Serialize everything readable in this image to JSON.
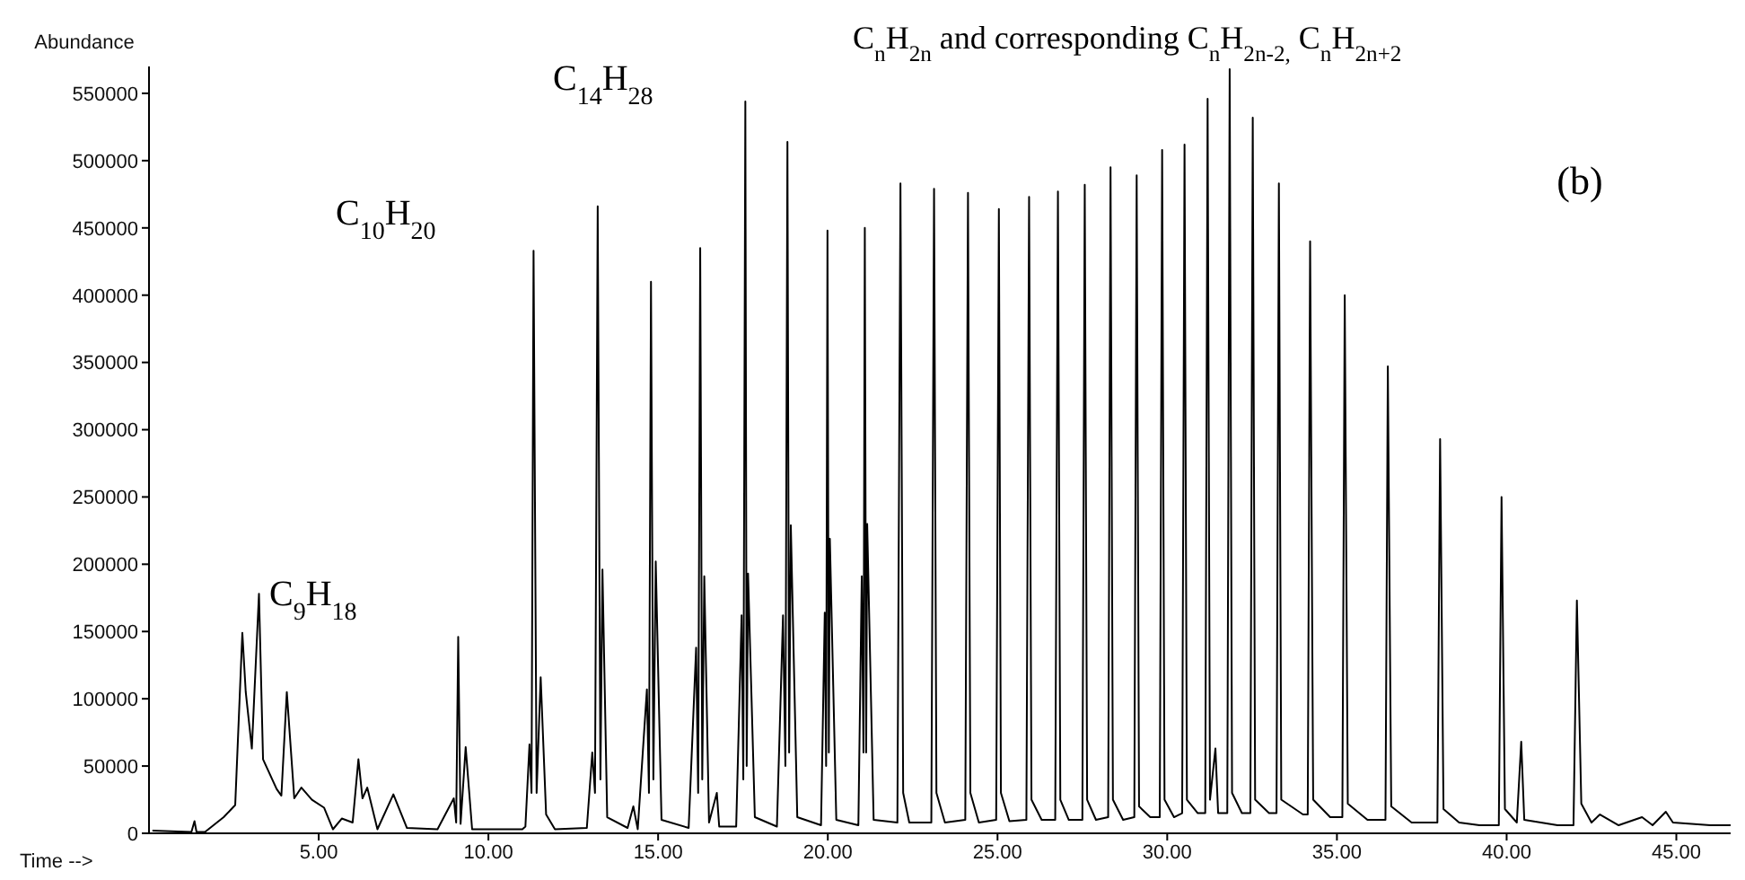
{
  "chart_data": {
    "type": "line",
    "xlabel": "Time -->",
    "ylabel": "Abundance",
    "annotations": [
      "C$_{9}$H$_{18}$",
      "C$_{10}$H$_{20}$",
      "C$_{14}$H$_{28}$",
      "C$_{n}$H$_{2n}$ and corresponding C$_{n}$H$_{2n-2,}$ C$_{n}$H$_{2n+2}$",
      "(b)"
    ],
    "x": [
      0.1,
      1.25,
      1.34,
      1.4,
      1.65,
      2.2,
      2.54,
      2.75,
      2.85,
      3.03,
      3.24,
      3.36,
      3.76,
      3.9,
      4.06,
      4.28,
      4.49,
      4.8,
      5.16,
      5.42,
      5.68,
      6.0,
      6.17,
      6.29,
      6.43,
      6.73,
      7.2,
      7.6,
      8.5,
      8.98,
      9.05,
      9.11,
      9.18,
      9.33,
      9.52,
      11.0,
      11.09,
      11.21,
      11.27,
      11.33,
      11.42,
      11.54,
      11.7,
      11.96,
      12.9,
      13.06,
      13.14,
      13.22,
      13.3,
      13.36,
      13.5,
      14.1,
      14.27,
      14.4,
      14.67,
      14.73,
      14.79,
      14.86,
      14.93,
      15.1,
      15.9,
      16.12,
      16.18,
      16.24,
      16.3,
      16.36,
      16.5,
      16.73,
      16.8,
      17.3,
      17.46,
      17.51,
      17.57,
      17.61,
      17.65,
      17.85,
      18.5,
      18.68,
      18.75,
      18.81,
      18.86,
      18.91,
      19.1,
      19.8,
      19.91,
      19.95,
      19.99,
      20.03,
      20.06,
      20.25,
      20.9,
      21.0,
      21.05,
      21.09,
      21.13,
      21.16,
      21.35,
      22.05,
      22.14,
      22.22,
      22.4,
      23.05,
      23.13,
      23.2,
      23.45,
      24.05,
      24.13,
      24.2,
      24.45,
      24.96,
      25.04,
      25.1,
      25.35,
      25.85,
      25.93,
      26.0,
      26.3,
      26.7,
      26.78,
      26.85,
      27.1,
      27.5,
      27.57,
      27.64,
      27.9,
      28.26,
      28.33,
      28.4,
      28.7,
      29.03,
      29.1,
      29.17,
      29.5,
      29.78,
      29.85,
      29.92,
      30.2,
      30.44,
      30.51,
      30.58,
      30.9,
      31.12,
      31.19,
      31.26,
      31.42,
      31.5,
      31.77,
      31.84,
      31.91,
      32.2,
      32.45,
      32.52,
      32.59,
      33.0,
      33.22,
      33.29,
      33.36,
      34.0,
      34.14,
      34.21,
      34.3,
      34.8,
      35.16,
      35.23,
      35.32,
      35.9,
      36.43,
      36.5,
      36.6,
      37.2,
      37.96,
      38.04,
      38.14,
      38.6,
      39.2,
      39.77,
      39.85,
      39.95,
      40.3,
      40.43,
      40.52,
      41.5,
      41.97,
      42.07,
      42.2,
      42.5,
      42.75,
      43.3,
      43.99,
      44.3,
      44.69,
      44.9,
      46.0,
      46.6
    ],
    "series": [
      {
        "color": "#000000",
        "values": [
          2000,
          1000,
          9000,
          1000,
          1000,
          12000,
          21000,
          149000,
          105000,
          63000,
          178000,
          55000,
          33000,
          28000,
          105000,
          26000,
          34000,
          25000,
          19000,
          3000,
          11000,
          8000,
          55000,
          26000,
          34000,
          3000,
          29000,
          4000,
          3000,
          26000,
          8000,
          146000,
          7000,
          64000,
          3000,
          3000,
          5000,
          66000,
          30000,
          433000,
          30000,
          116000,
          14000,
          3000,
          4000,
          60000,
          30000,
          466000,
          40000,
          196000,
          12000,
          4000,
          20000,
          3000,
          107000,
          30000,
          410000,
          40000,
          202000,
          10000,
          4000,
          138000,
          30000,
          435000,
          40000,
          191000,
          8000,
          30000,
          5000,
          5000,
          162000,
          40000,
          544000,
          50000,
          193000,
          12000,
          5000,
          162000,
          50000,
          514000,
          60000,
          229000,
          12000,
          6000,
          164000,
          50000,
          448000,
          60000,
          219000,
          10000,
          6000,
          191000,
          60000,
          450000,
          60000,
          230000,
          10000,
          8000,
          483000,
          30000,
          8000,
          8000,
          479000,
          30000,
          8000,
          10000,
          476000,
          30000,
          8000,
          10000,
          464000,
          30000,
          9000,
          10000,
          473000,
          25000,
          10000,
          10000,
          477000,
          25000,
          10000,
          10000,
          482000,
          25000,
          10000,
          12000,
          495000,
          25000,
          10000,
          12000,
          489000,
          20000,
          12000,
          12000,
          508000,
          25000,
          12000,
          15000,
          512000,
          25000,
          15000,
          15000,
          546000,
          25000,
          63000,
          15000,
          15000,
          568000,
          30000,
          15000,
          15000,
          532000,
          25000,
          15000,
          15000,
          483000,
          25000,
          14000,
          14000,
          440000,
          25000,
          12000,
          12000,
          400000,
          22000,
          10000,
          10000,
          347000,
          20000,
          8000,
          8000,
          293000,
          18000,
          8000,
          6000,
          6000,
          250000,
          18000,
          8000,
          68000,
          10000,
          6000,
          6000,
          173000,
          22000,
          8000,
          14000,
          6000,
          12000,
          6000,
          16000,
          8000,
          6000,
          6000
        ]
      }
    ],
    "xlim": [
      0,
      46.6
    ],
    "xticks": [
      {
        "value": 5,
        "label": "5.00"
      },
      {
        "value": 10,
        "label": "10.00"
      },
      {
        "value": 15,
        "label": "15.00"
      },
      {
        "value": 20,
        "label": "20.00"
      },
      {
        "value": 25,
        "label": "25.00"
      },
      {
        "value": 30,
        "label": "30.00"
      },
      {
        "value": 35,
        "label": "35.00"
      },
      {
        "value": 40,
        "label": "40.00"
      },
      {
        "value": 45,
        "label": "45.00"
      }
    ],
    "ylim": [
      0,
      570000
    ],
    "yticks": [
      0,
      50000,
      100000,
      150000,
      200000,
      250000,
      300000,
      350000,
      400000,
      450000,
      500000,
      550000
    ],
    "grid": false,
    "legend": false,
    "marker": "none",
    "line_style": "solid"
  }
}
